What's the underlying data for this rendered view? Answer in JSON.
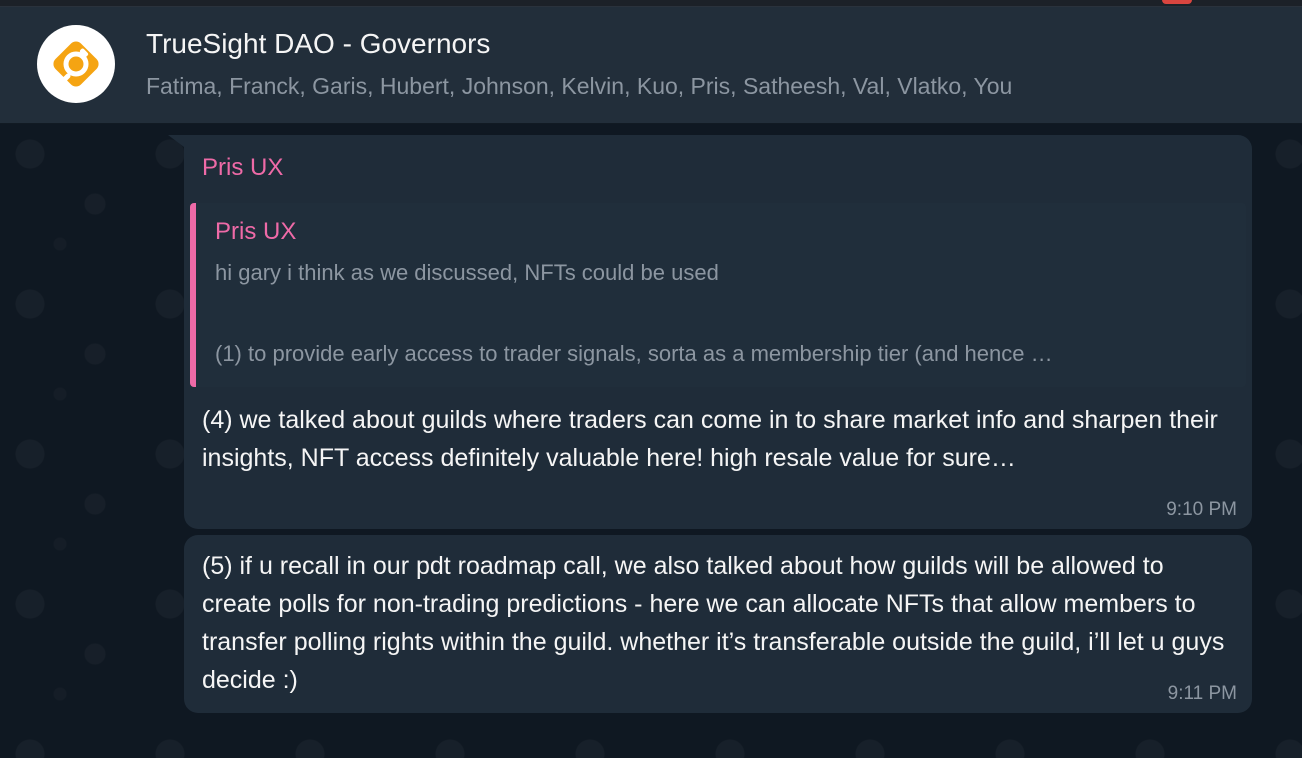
{
  "window": {
    "accent_color": "#ee6aa7",
    "header_bg": "#222e3a",
    "bubble_bg": "#1f2c39"
  },
  "chat": {
    "title": "TrueSight DAO - Governors",
    "members": "Fatima, Franck, Garis, Hubert, Johnson, Kelvin, Kuo, Pris, Satheesh, Val, Vlatko, You",
    "avatar_icon": "truesight-logo-icon"
  },
  "messages": [
    {
      "sender": "Pris UX",
      "quote": {
        "sender": "Pris UX",
        "line1": "hi gary i think as we discussed, NFTs could be used",
        "line2": "(1) to provide early access to trader signals, sorta as a membership tier (and hence …"
      },
      "text": "(4) we talked about guilds where traders can come in to share market info and sharpen their insights, NFT access definitely valuable here! high resale value for sure…",
      "time": "9:10 PM"
    },
    {
      "text": "(5) if u recall in our pdt roadmap call, we also talked about how guilds will be allowed to create polls for non-trading predictions - here we can allocate NFTs that allow members to transfer polling rights within the guild. whether it’s transferable outside the guild, i’ll let u guys decide :)",
      "time": "9:11 PM"
    }
  ]
}
